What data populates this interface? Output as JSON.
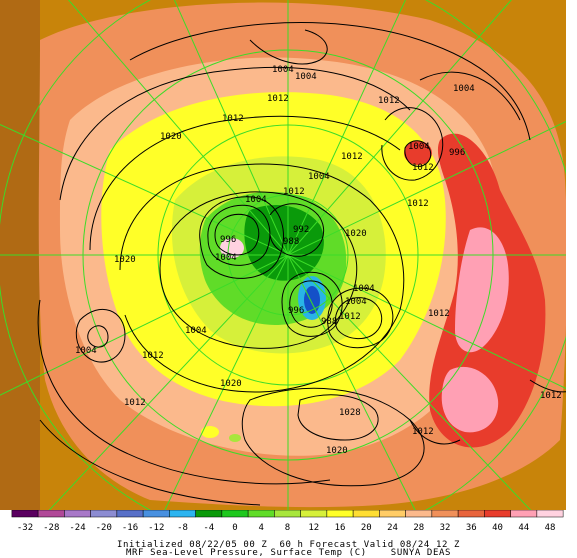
{
  "colors": {
    "brown_far": "#c8840a",
    "orange_warm": "#f0905a",
    "light_orange": "#fbb98c",
    "yellow": "#ffff28",
    "lime": "#a8e63c",
    "green": "#1ec81e",
    "dark_green": "#0a9a0a",
    "cyan": "#29b4e6",
    "blue": "#1450c8",
    "red": "#e83c2c",
    "pink": "#ffa0b4",
    "graticule": "#3cdc28"
  },
  "isobar_labels": [
    "1004",
    "1004",
    "1012",
    "1012",
    "1004",
    "1012",
    "1020",
    "1012",
    "1004",
    "1012",
    "1004",
    "1012",
    "1004",
    "1012",
    "996",
    "996",
    "1020",
    "1020",
    "1004",
    "1004",
    "988",
    "992",
    "1004",
    "1004",
    "988",
    "1004",
    "1012",
    "1012",
    "1020",
    "1012",
    "1028",
    "1020",
    "1012",
    "1012",
    "996",
    "1012"
  ],
  "legend": {
    "ticks": [
      "-32",
      "-28",
      "-24",
      "-20",
      "-16",
      "-12",
      "-8",
      "-4",
      "0",
      "4",
      "8",
      "12",
      "16",
      "20",
      "24",
      "28",
      "32",
      "36",
      "40",
      "44",
      "48"
    ],
    "colors": [
      "#5a0060",
      "#b04898",
      "#a878c8",
      "#8c8cd2",
      "#5870c8",
      "#4890e0",
      "#2cb4f0",
      "#0a9a0a",
      "#1ec81e",
      "#60dc28",
      "#a8e63c",
      "#d6f03a",
      "#ffff28",
      "#ffde32",
      "#ffcc66",
      "#fbb98c",
      "#f0905a",
      "#e8643c",
      "#e83c2c",
      "#ffa0b4",
      "#ffd2e0"
    ]
  },
  "caption": {
    "line1": "Initialized 08/22/05 00 Z  60 h Forecast Valid 08/24 12 Z",
    "line2": "MRF Sea-Level Pressure, Surface Temp (C)    SUNYA DEAS"
  }
}
